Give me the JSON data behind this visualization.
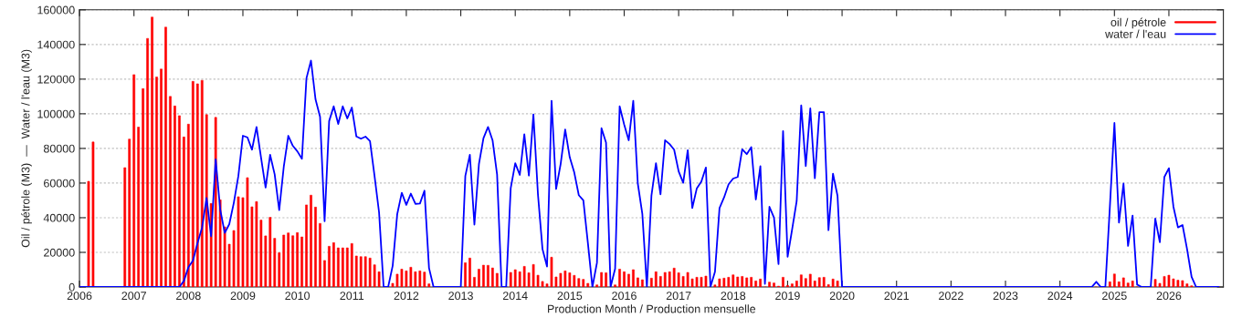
{
  "chart_data": {
    "type": "bar",
    "xlabel": "Production Month / Production mensuelle",
    "ylabel": "Oil / pétrole (M3)  —  Water / l'eau (M3)",
    "x": [
      "2006-01",
      "2006-02",
      "2006-03",
      "2006-04",
      "2006-05",
      "2006-06",
      "2006-07",
      "2006-08",
      "2006-09",
      "2006-10",
      "2006-11",
      "2006-12",
      "2007-01",
      "2007-02",
      "2007-03",
      "2007-04",
      "2007-05",
      "2007-06",
      "2007-07",
      "2007-08",
      "2007-09",
      "2007-10",
      "2007-11",
      "2007-12",
      "2008-01",
      "2008-02",
      "2008-03",
      "2008-04",
      "2008-05",
      "2008-06",
      "2008-07",
      "2008-08",
      "2008-09",
      "2008-10",
      "2008-11",
      "2008-12",
      "2009-01",
      "2009-02",
      "2009-03",
      "2009-04",
      "2009-05",
      "2009-06",
      "2009-07",
      "2009-08",
      "2009-09",
      "2009-10",
      "2009-11",
      "2009-12",
      "2010-01",
      "2010-02",
      "2010-03",
      "2010-04",
      "2010-05",
      "2010-06",
      "2010-07",
      "2010-08",
      "2010-09",
      "2010-10",
      "2010-11",
      "2010-12",
      "2011-01",
      "2011-02",
      "2011-03",
      "2011-04",
      "2011-05",
      "2011-06",
      "2011-07",
      "2011-08",
      "2011-09",
      "2011-10",
      "2011-11",
      "2011-12",
      "2012-01",
      "2012-02",
      "2012-03",
      "2012-04",
      "2012-05",
      "2012-06",
      "2012-07",
      "2012-08",
      "2012-09",
      "2012-10",
      "2012-11",
      "2012-12",
      "2013-01",
      "2013-02",
      "2013-03",
      "2013-04",
      "2013-05",
      "2013-06",
      "2013-07",
      "2013-08",
      "2013-09",
      "2013-10",
      "2013-11",
      "2013-12",
      "2014-01",
      "2014-02",
      "2014-03",
      "2014-04",
      "2014-05",
      "2014-06",
      "2014-07",
      "2014-08",
      "2014-09",
      "2014-10",
      "2014-11",
      "2014-12",
      "2015-01",
      "2015-02",
      "2015-03",
      "2015-04",
      "2015-05",
      "2015-06",
      "2015-07",
      "2015-08",
      "2015-09",
      "2015-10",
      "2015-11",
      "2015-12",
      "2016-01",
      "2016-02",
      "2016-03",
      "2016-04",
      "2016-05",
      "2016-06",
      "2016-07",
      "2016-08",
      "2016-09",
      "2016-10",
      "2016-11",
      "2016-12",
      "2017-01",
      "2017-02",
      "2017-03",
      "2017-04",
      "2017-05",
      "2017-06",
      "2017-07",
      "2017-08",
      "2017-09",
      "2017-10",
      "2017-11",
      "2017-12",
      "2018-01",
      "2018-02",
      "2018-03",
      "2018-04",
      "2018-05",
      "2018-06",
      "2018-07",
      "2018-08",
      "2018-09",
      "2018-10",
      "2018-11",
      "2018-12",
      "2019-01",
      "2019-02",
      "2019-03",
      "2019-04",
      "2019-05",
      "2019-06",
      "2019-07",
      "2019-08",
      "2019-09",
      "2019-10",
      "2019-11",
      "2019-12",
      "2020-01",
      "2020-02",
      "2020-03",
      "2020-04",
      "2020-05",
      "2020-06",
      "2020-07",
      "2020-08",
      "2020-09",
      "2020-10",
      "2020-11",
      "2020-12",
      "2021-01",
      "2021-02",
      "2021-03",
      "2021-04",
      "2021-05",
      "2021-06",
      "2021-07",
      "2021-08",
      "2021-09",
      "2021-10",
      "2021-11",
      "2021-12",
      "2022-01",
      "2022-02",
      "2022-03",
      "2022-04",
      "2022-05",
      "2022-06",
      "2022-07",
      "2022-08",
      "2022-09",
      "2022-10",
      "2022-11",
      "2022-12",
      "2023-01",
      "2023-02",
      "2023-03",
      "2023-04",
      "2023-05",
      "2023-06",
      "2023-07",
      "2023-08",
      "2023-09",
      "2023-10",
      "2023-11",
      "2023-12",
      "2024-01",
      "2024-02",
      "2024-03",
      "2024-04",
      "2024-05",
      "2024-06",
      "2024-07",
      "2024-08",
      "2024-09",
      "2024-10",
      "2024-11",
      "2024-12",
      "2025-01",
      "2025-02",
      "2025-03",
      "2025-04",
      "2025-05",
      "2025-06",
      "2025-07",
      "2025-08",
      "2025-09",
      "2025-10",
      "2025-11",
      "2025-12",
      "2026-01",
      "2026-02",
      "2026-03",
      "2026-04",
      "2026-05",
      "2026-06",
      "2026-07",
      "2026-08",
      "2026-09",
      "2026-10",
      "2026-11",
      "2026-12"
    ],
    "series": [
      {
        "name": "oil / pétrole",
        "color": "#ff0000",
        "values": [
          0,
          0,
          61000,
          83700,
          0,
          0,
          0,
          0,
          0,
          0,
          68900,
          85400,
          122600,
          92300,
          114500,
          143500,
          155800,
          121200,
          125800,
          150000,
          110000,
          104500,
          98900,
          86600,
          94000,
          118700,
          117300,
          119300,
          99500,
          48200,
          97900,
          50300,
          34700,
          24700,
          32600,
          52100,
          51600,
          63100,
          46300,
          49300,
          38600,
          29500,
          40200,
          28100,
          19800,
          30000,
          31200,
          29600,
          31400,
          28900,
          47400,
          53000,
          46100,
          36700,
          15300,
          23500,
          25600,
          22600,
          22600,
          22600,
          25100,
          17900,
          17500,
          17500,
          16700,
          12800,
          8800,
          0,
          0,
          2100,
          7400,
          10300,
          9300,
          11400,
          8800,
          9300,
          8600,
          1800,
          0,
          0,
          0,
          0,
          0,
          0,
          0,
          14000,
          16700,
          5600,
          10300,
          12600,
          12500,
          11000,
          7900,
          0,
          0,
          8400,
          10000,
          8800,
          11900,
          8200,
          13000,
          6800,
          3200,
          1800,
          17200,
          5800,
          7900,
          9300,
          8200,
          6700,
          4900,
          4400,
          2100,
          0,
          1200,
          8400,
          8200,
          0,
          1200,
          10300,
          8800,
          7400,
          10000,
          5300,
          4200,
          0,
          5100,
          8800,
          6100,
          8400,
          8800,
          10900,
          8200,
          6100,
          8400,
          4700,
          5600,
          5600,
          6300,
          0,
          1200,
          4700,
          5100,
          5600,
          7000,
          5800,
          6100,
          5300,
          5600,
          3500,
          4600,
          0,
          2800,
          2300,
          500,
          5600,
          900,
          1800,
          3500,
          7000,
          4900,
          7400,
          3500,
          5400,
          5600,
          1400,
          4600,
          3500,
          0,
          0,
          0,
          0,
          0,
          0,
          0,
          0,
          0,
          0,
          0,
          0,
          0,
          0,
          0,
          0,
          0,
          0,
          0,
          0,
          0,
          0,
          0,
          0,
          0,
          0,
          0,
          0,
          0,
          0,
          0,
          0,
          0,
          0,
          0,
          0,
          0,
          0,
          0,
          0,
          0,
          0,
          0,
          0,
          0,
          0,
          0,
          0,
          0,
          0,
          0,
          0,
          0,
          0,
          0,
          0,
          0,
          0,
          0,
          3000,
          7500,
          3000,
          5300,
          2300,
          3500,
          0,
          0,
          0,
          0,
          4400,
          2100,
          6100,
          6800,
          4700,
          3900,
          3700,
          1800,
          700,
          0,
          0,
          0,
          0,
          0,
          0
        ]
      },
      {
        "name": "water / l'eau",
        "type": "line",
        "color": "#0000ff",
        "values": [
          0,
          0,
          0,
          0,
          0,
          0,
          0,
          0,
          0,
          0,
          0,
          0,
          0,
          0,
          0,
          0,
          0,
          0,
          0,
          0,
          0,
          0,
          0,
          3500,
          11400,
          15300,
          25400,
          34200,
          51400,
          29300,
          73700,
          44700,
          31200,
          36300,
          48600,
          64100,
          87300,
          86400,
          79300,
          92400,
          74600,
          57400,
          76300,
          65000,
          44400,
          69300,
          87300,
          81500,
          78300,
          74000,
          120500,
          130700,
          108300,
          98200,
          38000,
          95800,
          104300,
          94100,
          104300,
          97300,
          103600,
          86900,
          85600,
          86800,
          84200,
          64100,
          43000,
          0,
          0,
          12300,
          42100,
          54400,
          47400,
          53900,
          48000,
          48200,
          55600,
          11000,
          0,
          0,
          0,
          0,
          0,
          0,
          0,
          64100,
          76300,
          36000,
          71000,
          85900,
          92400,
          84700,
          64900,
          0,
          0,
          57000,
          71500,
          64700,
          88200,
          64300,
          99600,
          53500,
          21900,
          11800,
          107500,
          56600,
          71000,
          90900,
          74900,
          66100,
          53000,
          50000,
          25400,
          0,
          14000,
          91700,
          83400,
          0,
          10500,
          104300,
          93800,
          84700,
          107500,
          59700,
          42100,
          0,
          52600,
          71500,
          53500,
          84700,
          82500,
          79300,
          66700,
          60200,
          79000,
          45600,
          57000,
          60900,
          69000,
          0,
          8800,
          45600,
          51700,
          59300,
          62600,
          63500,
          79500,
          76700,
          80700,
          50500,
          69800,
          1800,
          46300,
          40000,
          13200,
          90000,
          17500,
          33300,
          49600,
          104900,
          69800,
          103100,
          62800,
          100900,
          100900,
          32800,
          65400,
          52600,
          0,
          0,
          0,
          0,
          0,
          0,
          0,
          0,
          0,
          0,
          0,
          0,
          0,
          0,
          0,
          0,
          0,
          0,
          0,
          0,
          0,
          0,
          0,
          0,
          0,
          0,
          0,
          0,
          0,
          0,
          0,
          0,
          0,
          0,
          0,
          0,
          0,
          0,
          0,
          0,
          0,
          0,
          0,
          0,
          0,
          0,
          0,
          0,
          0,
          0,
          0,
          0,
          0,
          0,
          0,
          0,
          3000,
          0,
          0,
          46500,
          94700,
          37200,
          59700,
          23700,
          41200,
          1400,
          0,
          0,
          0,
          39500,
          25800,
          63500,
          68600,
          46300,
          34400,
          35800,
          21900,
          5800,
          0,
          0,
          0,
          0,
          0,
          0
        ]
      }
    ],
    "xlim": [
      "2006",
      "2027"
    ],
    "xticks": [
      "2006",
      "2007",
      "2008",
      "2009",
      "2010",
      "2011",
      "2012",
      "2013",
      "2014",
      "2015",
      "2016",
      "2017",
      "2018",
      "2019",
      "2020",
      "2021",
      "2022",
      "2023",
      "2024",
      "2025",
      "2026"
    ],
    "ylim": [
      0,
      160000
    ],
    "yticks": [
      0,
      20000,
      40000,
      60000,
      80000,
      100000,
      120000,
      140000,
      160000
    ],
    "grid": "y",
    "legend": "top right"
  }
}
